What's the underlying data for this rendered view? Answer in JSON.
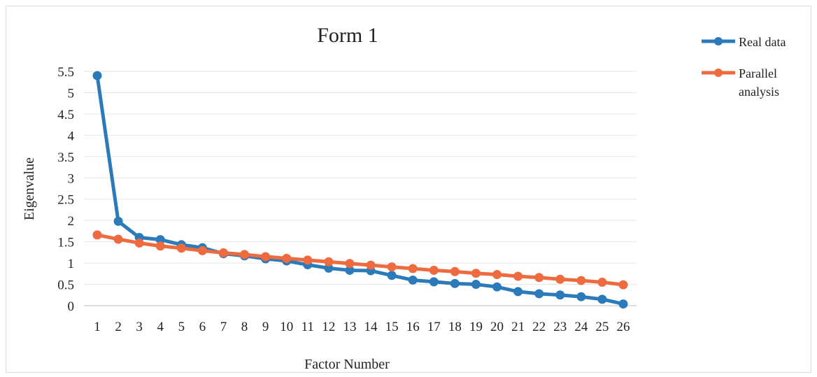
{
  "chart_data": {
    "type": "line",
    "title": "Form 1",
    "xlabel": "Factor Number",
    "ylabel": "Eigenvalue",
    "ylim": [
      0,
      5.5
    ],
    "yticks": [
      "0",
      "0.5",
      "1",
      "1.5",
      "2",
      "2.5",
      "3",
      "3.5",
      "4",
      "4.5",
      "5",
      "5.5"
    ],
    "categories": [
      "1",
      "2",
      "3",
      "4",
      "5",
      "6",
      "7",
      "8",
      "9",
      "10",
      "11",
      "12",
      "13",
      "14",
      "15",
      "16",
      "17",
      "18",
      "19",
      "20",
      "21",
      "22",
      "23",
      "24",
      "25",
      "26"
    ],
    "grid": true,
    "legend_position": "top-right",
    "series": [
      {
        "name": "Real data",
        "color": "#2b7bba",
        "values": [
          5.4,
          1.98,
          1.6,
          1.55,
          1.43,
          1.36,
          1.22,
          1.17,
          1.1,
          1.05,
          0.96,
          0.88,
          0.83,
          0.82,
          0.71,
          0.6,
          0.56,
          0.52,
          0.5,
          0.44,
          0.33,
          0.28,
          0.25,
          0.21,
          0.15,
          0.04
        ]
      },
      {
        "name": "Parallel analysis",
        "color": "#ee6a3f",
        "values": [
          1.66,
          1.56,
          1.47,
          1.4,
          1.35,
          1.29,
          1.24,
          1.2,
          1.15,
          1.11,
          1.07,
          1.03,
          0.99,
          0.95,
          0.91,
          0.87,
          0.83,
          0.8,
          0.76,
          0.73,
          0.69,
          0.66,
          0.62,
          0.59,
          0.55,
          0.49
        ]
      }
    ]
  }
}
